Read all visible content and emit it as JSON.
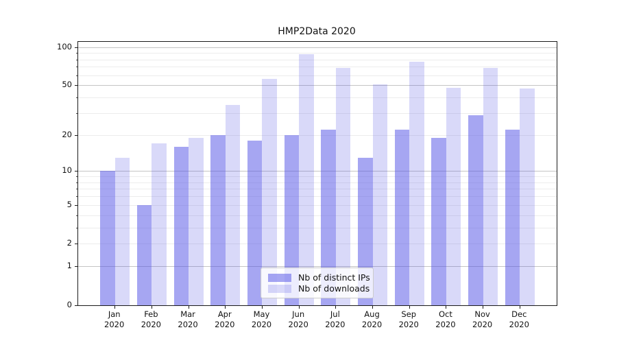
{
  "title": "HMP2Data 2020",
  "chart_data": {
    "type": "bar",
    "title": "HMP2Data 2020",
    "categories": [
      {
        "month": "Jan",
        "year": "2020"
      },
      {
        "month": "Feb",
        "year": "2020"
      },
      {
        "month": "Mar",
        "year": "2020"
      },
      {
        "month": "Apr",
        "year": "2020"
      },
      {
        "month": "May",
        "year": "2020"
      },
      {
        "month": "Jun",
        "year": "2020"
      },
      {
        "month": "Jul",
        "year": "2020"
      },
      {
        "month": "Aug",
        "year": "2020"
      },
      {
        "month": "Sep",
        "year": "2020"
      },
      {
        "month": "Oct",
        "year": "2020"
      },
      {
        "month": "Nov",
        "year": "2020"
      },
      {
        "month": "Dec",
        "year": "2020"
      }
    ],
    "series": [
      {
        "name": "Nb of distinct IPs",
        "color": "rgba(77,77,229,0.50)",
        "values": [
          10,
          5,
          16,
          20,
          18,
          20,
          22,
          13,
          22,
          19,
          29,
          22
        ]
      },
      {
        "name": "Nb of downloads",
        "color": "rgba(77,77,229,0.21)",
        "values": [
          13,
          17,
          19,
          35,
          56,
          88,
          69,
          51,
          77,
          48,
          69,
          47
        ]
      }
    ],
    "yscale": "log1p",
    "ylim": [
      0,
      110
    ],
    "yticks": [
      0,
      1,
      2,
      5,
      10,
      20,
      50,
      100
    ],
    "yticks_major_grid": [
      1,
      10,
      50,
      100
    ],
    "yticks_minor": [
      3,
      4,
      6,
      7,
      8,
      9,
      30,
      40,
      60,
      70,
      80,
      90
    ],
    "grid": "horizontal",
    "legend_position": "lower center",
    "colors": {
      "grid_major": "#c4c4c4",
      "grid_minor": "#ececec",
      "spine": "#1a1a1a"
    }
  }
}
